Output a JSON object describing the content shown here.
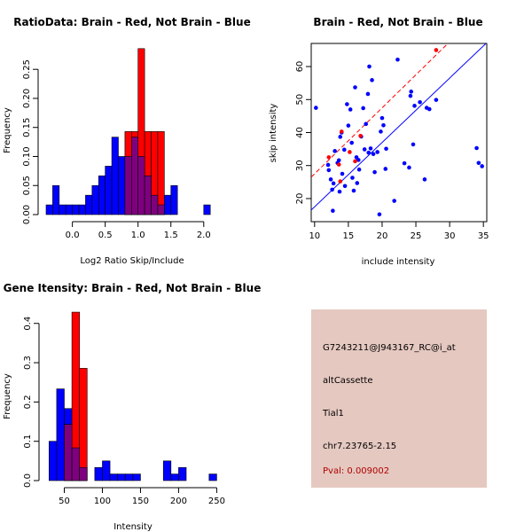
{
  "colors": {
    "brain": "#ff0000",
    "not_brain": "#0000ff",
    "overlap": "#7f007f",
    "info_bg": "#e5c8c0",
    "pval": "#b00000"
  },
  "chart_data": [
    {
      "id": "ratio-hist",
      "type": "bar",
      "title": "RatioData: Brain - Red, Not Brain - Blue",
      "xlabel": "Log2 Ratio Skip/Include",
      "ylabel": "Frequency",
      "xlim": [
        -0.4,
        2.3
      ],
      "ylim": [
        0,
        0.29
      ],
      "xticks": [
        0.0,
        0.5,
        1.0,
        1.5,
        2.0
      ],
      "xtick_labels": [
        "0.0",
        "0.5",
        "1.0",
        "1.5",
        "2.0"
      ],
      "yticks": [
        0,
        0.05,
        0.1,
        0.15,
        0.2,
        0.25
      ],
      "ytick_labels": [
        "0.00",
        "0.05",
        "0.10",
        "0.15",
        "0.20",
        "0.25"
      ],
      "bin_width": 0.1,
      "series": [
        {
          "name": "Not Brain",
          "color": "blue",
          "bin_starts": [
            -0.4,
            -0.3,
            -0.2,
            -0.1,
            0.0,
            0.1,
            0.2,
            0.3,
            0.4,
            0.5,
            0.6,
            0.7,
            0.8,
            0.9,
            1.0,
            1.1,
            1.2,
            1.3,
            1.4,
            1.5,
            1.6,
            1.7,
            1.8,
            1.9,
            2.0,
            2.1
          ],
          "values": [
            0.0167,
            0.05,
            0.0167,
            0.0167,
            0.0167,
            0.0167,
            0.0333,
            0.05,
            0.0667,
            0.0833,
            0.1333,
            0.1,
            0.1,
            0.1333,
            0.1,
            0.0667,
            0.0333,
            0.0167,
            0.0333,
            0.05,
            0.0,
            0.0,
            0.0,
            0.0,
            0.0167,
            0.0
          ]
        },
        {
          "name": "Brain",
          "color": "red",
          "bin_starts": [
            0.8,
            0.9,
            1.0,
            1.1,
            1.2,
            1.3,
            1.4
          ],
          "values": [
            0.1429,
            0.1429,
            0.2857,
            0.1429,
            0.1429,
            0.1429,
            0.0
          ]
        }
      ]
    },
    {
      "id": "intensity-scatter",
      "type": "scatter",
      "title": "Brain - Red, Not Brain - Blue",
      "xlabel": "include intensity",
      "ylabel": "skip intensity",
      "xlim": [
        9.5,
        35.5
      ],
      "ylim": [
        13,
        67
      ],
      "xticks": [
        10,
        15,
        20,
        25,
        30,
        35
      ],
      "yticks": [
        20,
        30,
        40,
        50,
        60
      ],
      "series": [
        {
          "name": "Not Brain",
          "color": "blue",
          "points": [
            [
              10.2,
              47.5
            ],
            [
              12.0,
              30.2
            ],
            [
              12.1,
              28.6
            ],
            [
              12.4,
              25.8
            ],
            [
              12.6,
              22.7
            ],
            [
              12.7,
              16.3
            ],
            [
              12.8,
              24.6
            ],
            [
              13.0,
              34.4
            ],
            [
              13.4,
              30.8
            ],
            [
              13.6,
              31.6
            ],
            [
              13.7,
              22.1
            ],
            [
              13.8,
              38.7
            ],
            [
              14.0,
              40.0
            ],
            [
              14.1,
              27.5
            ],
            [
              14.4,
              34.8
            ],
            [
              14.5,
              23.8
            ],
            [
              14.8,
              48.6
            ],
            [
              15.0,
              42.1
            ],
            [
              15.3,
              47.0
            ],
            [
              15.5,
              36.9
            ],
            [
              15.6,
              26.3
            ],
            [
              15.8,
              22.4
            ],
            [
              16.0,
              53.7
            ],
            [
              16.2,
              32.5
            ],
            [
              16.3,
              24.7
            ],
            [
              16.5,
              31.7
            ],
            [
              16.6,
              28.8
            ],
            [
              16.9,
              38.8
            ],
            [
              17.2,
              47.4
            ],
            [
              17.4,
              34.9
            ],
            [
              17.6,
              42.6
            ],
            [
              17.9,
              51.7
            ],
            [
              18.0,
              33.9
            ],
            [
              18.1,
              60.0
            ],
            [
              18.3,
              35.2
            ],
            [
              18.5,
              55.9
            ],
            [
              18.7,
              33.5
            ],
            [
              18.9,
              28.0
            ],
            [
              19.3,
              34.1
            ],
            [
              19.6,
              15.2
            ],
            [
              19.8,
              40.3
            ],
            [
              20.0,
              44.4
            ],
            [
              20.2,
              42.2
            ],
            [
              20.5,
              29.0
            ],
            [
              20.6,
              35.1
            ],
            [
              21.8,
              19.3
            ],
            [
              22.3,
              62.1
            ],
            [
              23.3,
              30.7
            ],
            [
              24.0,
              29.4
            ],
            [
              24.2,
              51.1
            ],
            [
              24.3,
              52.4
            ],
            [
              24.6,
              36.4
            ],
            [
              24.8,
              48.1
            ],
            [
              25.6,
              49.2
            ],
            [
              26.3,
              25.8
            ],
            [
              26.6,
              47.5
            ],
            [
              27.0,
              47.1
            ],
            [
              28.0,
              49.9
            ],
            [
              34.0,
              35.3
            ],
            [
              34.3,
              30.8
            ],
            [
              34.8,
              29.8
            ]
          ]
        },
        {
          "name": "Brain",
          "color": "red",
          "points": [
            [
              12.1,
              32.5
            ],
            [
              13.6,
              30.3
            ],
            [
              13.8,
              25.2
            ],
            [
              14.0,
              40.3
            ],
            [
              15.2,
              34.1
            ],
            [
              16.0,
              31.3
            ],
            [
              16.8,
              39.0
            ],
            [
              28.0,
              65.0
            ]
          ]
        }
      ],
      "lines": [
        {
          "name": "red-fit",
          "color": "red",
          "dashed": true,
          "intercept": 7.5,
          "slope": 2.0
        },
        {
          "name": "blue-fit",
          "color": "blue",
          "dashed": false,
          "intercept": -2.0,
          "slope": 1.95
        }
      ]
    },
    {
      "id": "intensity-hist",
      "type": "bar",
      "title": "Gene Itensity: Brain - Red, Not Brain - Blue",
      "xlabel": "Intensity",
      "ylabel": "Frequency",
      "xlim": [
        25,
        260
      ],
      "ylim": [
        0,
        0.44
      ],
      "xticks": [
        50,
        100,
        150,
        200,
        250
      ],
      "yticks": [
        0.0,
        0.1,
        0.2,
        0.3,
        0.4
      ],
      "ytick_labels": [
        "0.0",
        "0.1",
        "0.2",
        "0.3",
        "0.4"
      ],
      "bin_width": 10,
      "series": [
        {
          "name": "Not Brain",
          "color": "blue",
          "bin_starts": [
            30,
            40,
            50,
            60,
            70,
            80,
            90,
            100,
            110,
            120,
            130,
            140,
            150,
            160,
            170,
            180,
            190,
            200,
            210,
            220,
            230,
            240
          ],
          "values": [
            0.1,
            0.2333,
            0.1833,
            0.0833,
            0.0333,
            0.0,
            0.0333,
            0.05,
            0.0167,
            0.0167,
            0.0167,
            0.0167,
            0.0,
            0.0,
            0.0,
            0.05,
            0.0167,
            0.0333,
            0.0,
            0.0,
            0.0,
            0.0167
          ]
        },
        {
          "name": "Brain",
          "color": "red",
          "bin_starts": [
            50,
            60,
            70
          ],
          "values": [
            0.1429,
            0.4286,
            0.2857
          ]
        }
      ]
    }
  ],
  "info": {
    "probe_id": "G7243211@J943167_RC@i_at",
    "event_type": "altCassette",
    "gene": "Tial1",
    "location": "chr7.23765-2.15",
    "pval": "Pval: 0.009002"
  }
}
